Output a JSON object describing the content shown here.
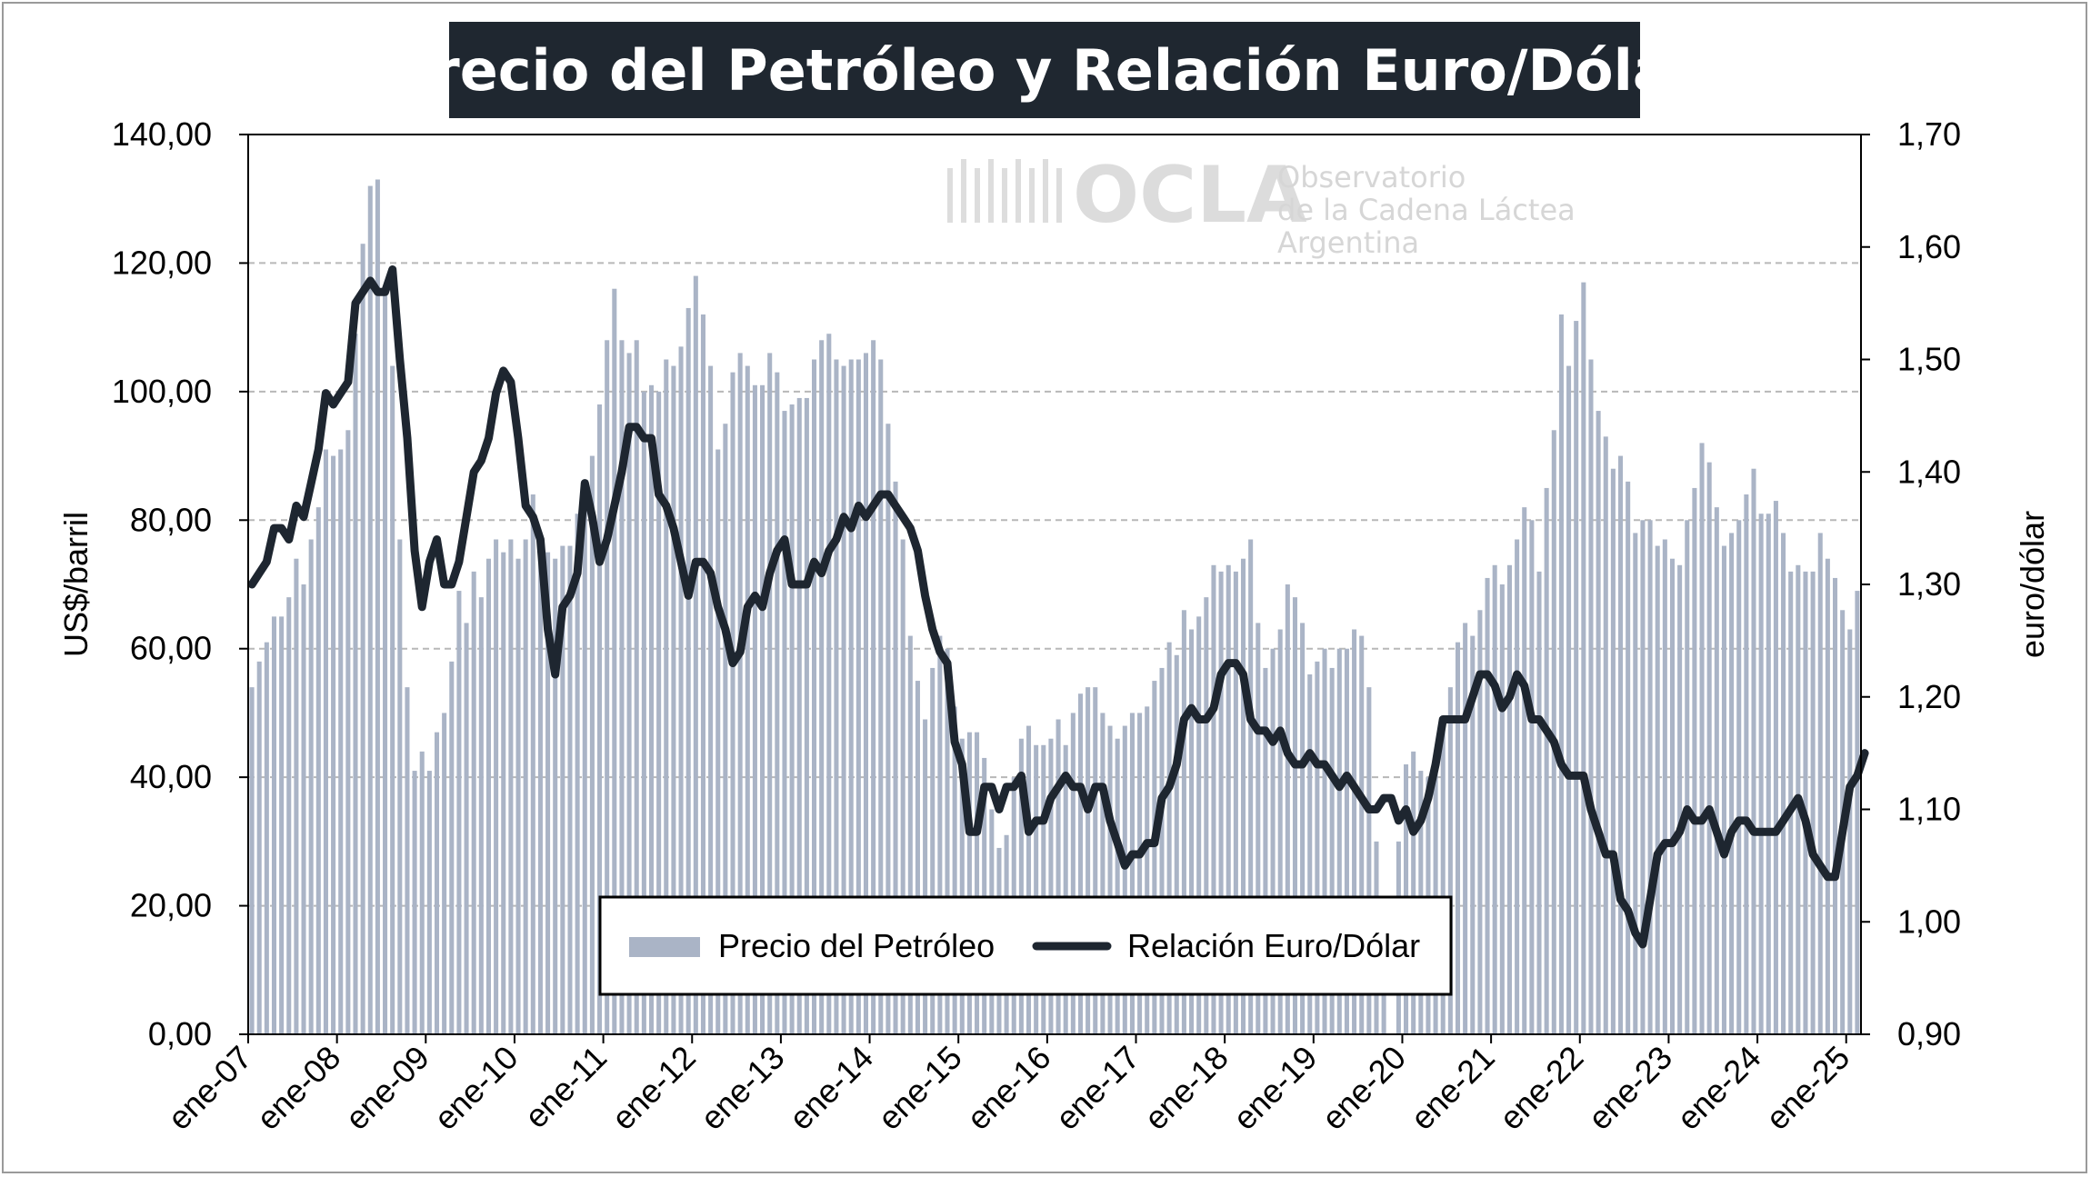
{
  "title": "Precio del Petróleo y Relación Euro/Dólar",
  "watermark": {
    "logo_text": "OCLA",
    "line1": "Observatorio",
    "line2": "de la Cadena Láctea",
    "line3": "Argentina"
  },
  "chart_data": {
    "type": "bar+line",
    "title": "Precio del Petróleo y Relación Euro/Dólar",
    "ylabel_left": "US$/barril",
    "ylabel_right": "euro/dólar",
    "ylim_left": [
      0,
      140
    ],
    "ylim_right": [
      0.9,
      1.7
    ],
    "yticks_left": [
      "0,00",
      "20,00",
      "40,00",
      "60,00",
      "80,00",
      "100,00",
      "120,00",
      "140,00"
    ],
    "yticks_right": [
      "0,90",
      "1,00",
      "1,10",
      "1,20",
      "1,30",
      "1,40",
      "1,50",
      "1,60",
      "1,70"
    ],
    "xtick_labels": [
      "ene-07",
      "ene-08",
      "ene-09",
      "ene-10",
      "ene-11",
      "ene-12",
      "ene-13",
      "ene-14",
      "ene-15",
      "ene-16",
      "ene-17",
      "ene-18",
      "ene-19",
      "ene-20",
      "ene-21",
      "ene-22",
      "ene-23",
      "ene-24",
      "ene-25"
    ],
    "grid": "horizontal dashed",
    "legend_position": "bottom-center",
    "colors": {
      "bars": "#aab4c6",
      "line": "#1e2630",
      "title_bg": "#1f2730"
    },
    "series": [
      {
        "name": "Precio del Petróleo",
        "type": "bar",
        "axis": "left",
        "values": [
          54,
          58,
          61,
          65,
          65,
          68,
          74,
          70,
          77,
          82,
          91,
          90,
          91,
          94,
          109,
          123,
          132,
          133,
          116,
          104,
          77,
          54,
          41,
          44,
          41,
          47,
          50,
          58,
          69,
          64,
          72,
          68,
          74,
          77,
          75,
          77,
          74,
          77,
          84,
          75,
          75,
          74,
          76,
          76,
          81,
          84,
          90,
          98,
          108,
          116,
          108,
          106,
          108,
          100,
          101,
          100,
          105,
          104,
          107,
          113,
          118,
          112,
          104,
          91,
          95,
          103,
          106,
          104,
          101,
          101,
          106,
          103,
          97,
          98,
          99,
          99,
          105,
          108,
          109,
          105,
          104,
          105,
          105,
          106,
          108,
          105,
          95,
          86,
          77,
          62,
          55,
          49,
          57,
          62,
          60,
          51,
          46,
          47,
          47,
          43,
          35,
          29,
          31,
          40,
          46,
          48,
          45,
          45,
          46,
          49,
          45,
          50,
          53,
          54,
          54,
          50,
          48,
          46,
          48,
          50,
          50,
          51,
          55,
          57,
          61,
          59,
          66,
          63,
          65,
          68,
          73,
          72,
          73,
          72,
          74,
          77,
          64,
          57,
          60,
          63,
          70,
          68,
          64,
          56,
          58,
          60,
          57,
          60,
          60,
          63,
          62,
          54,
          30,
          16,
          0,
          30,
          42,
          44,
          41,
          40,
          42,
          48,
          54,
          61,
          64,
          62,
          66,
          71,
          73,
          70,
          73,
          77,
          82,
          80,
          72,
          85,
          94,
          112,
          104,
          111,
          117,
          105,
          97,
          93,
          88,
          90,
          86,
          78,
          80,
          80,
          76,
          77,
          74,
          73,
          80,
          85,
          92,
          89,
          82,
          76,
          78,
          80,
          84,
          88,
          81,
          81,
          83,
          78,
          72,
          73,
          72,
          72,
          78,
          74,
          71,
          66,
          63,
          69
        ]
      },
      {
        "name": "Relación Euro/Dólar",
        "type": "line",
        "axis": "right",
        "values": [
          1.3,
          1.31,
          1.32,
          1.35,
          1.35,
          1.34,
          1.37,
          1.36,
          1.39,
          1.42,
          1.47,
          1.46,
          1.47,
          1.48,
          1.55,
          1.56,
          1.57,
          1.56,
          1.56,
          1.58,
          1.5,
          1.43,
          1.33,
          1.28,
          1.32,
          1.34,
          1.3,
          1.3,
          1.32,
          1.36,
          1.4,
          1.41,
          1.43,
          1.47,
          1.49,
          1.48,
          1.43,
          1.37,
          1.36,
          1.34,
          1.26,
          1.22,
          1.28,
          1.29,
          1.31,
          1.39,
          1.36,
          1.32,
          1.34,
          1.37,
          1.4,
          1.44,
          1.44,
          1.43,
          1.43,
          1.38,
          1.37,
          1.35,
          1.32,
          1.29,
          1.32,
          1.32,
          1.31,
          1.28,
          1.26,
          1.23,
          1.24,
          1.28,
          1.29,
          1.28,
          1.31,
          1.33,
          1.34,
          1.3,
          1.3,
          1.3,
          1.32,
          1.31,
          1.33,
          1.34,
          1.36,
          1.35,
          1.37,
          1.36,
          1.37,
          1.38,
          1.38,
          1.37,
          1.36,
          1.35,
          1.33,
          1.29,
          1.26,
          1.24,
          1.23,
          1.16,
          1.14,
          1.08,
          1.08,
          1.12,
          1.12,
          1.1,
          1.12,
          1.12,
          1.13,
          1.08,
          1.09,
          1.09,
          1.11,
          1.12,
          1.13,
          1.12,
          1.12,
          1.1,
          1.12,
          1.12,
          1.09,
          1.07,
          1.05,
          1.06,
          1.06,
          1.07,
          1.07,
          1.11,
          1.12,
          1.14,
          1.18,
          1.19,
          1.18,
          1.18,
          1.19,
          1.22,
          1.23,
          1.23,
          1.22,
          1.18,
          1.17,
          1.17,
          1.16,
          1.17,
          1.15,
          1.14,
          1.14,
          1.15,
          1.14,
          1.14,
          1.13,
          1.12,
          1.13,
          1.12,
          1.11,
          1.1,
          1.1,
          1.11,
          1.11,
          1.09,
          1.1,
          1.08,
          1.09,
          1.11,
          1.14,
          1.18,
          1.18,
          1.18,
          1.18,
          1.2,
          1.22,
          1.22,
          1.21,
          1.19,
          1.2,
          1.22,
          1.21,
          1.18,
          1.18,
          1.17,
          1.16,
          1.14,
          1.13,
          1.13,
          1.13,
          1.1,
          1.08,
          1.06,
          1.06,
          1.02,
          1.01,
          0.99,
          0.98,
          1.02,
          1.06,
          1.07,
          1.07,
          1.08,
          1.1,
          1.09,
          1.09,
          1.1,
          1.08,
          1.06,
          1.08,
          1.09,
          1.09,
          1.08,
          1.08,
          1.08,
          1.08,
          1.09,
          1.1,
          1.11,
          1.09,
          1.06,
          1.05,
          1.04,
          1.04,
          1.08,
          1.12,
          1.13,
          1.15
        ]
      }
    ]
  }
}
